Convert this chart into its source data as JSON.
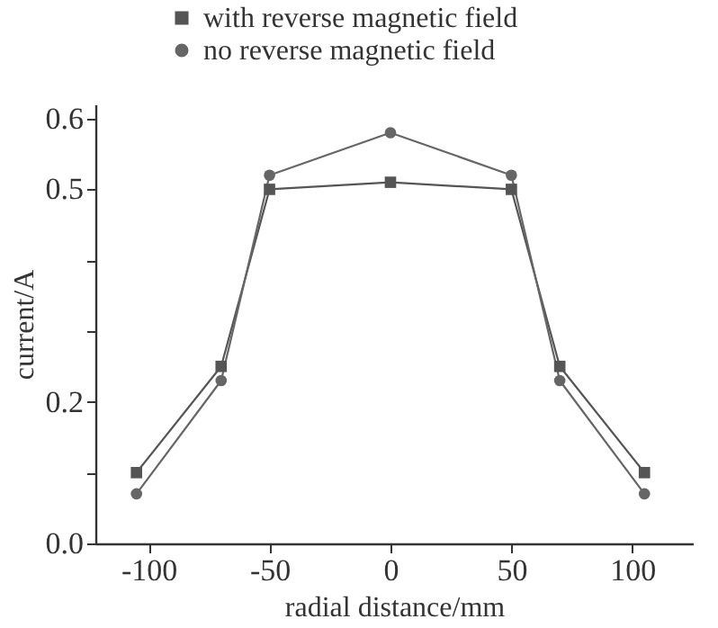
{
  "chart_data": {
    "type": "line",
    "xlabel": "radial distance/mm",
    "ylabel": "current/A",
    "x": [
      -105,
      -70,
      -50,
      0,
      50,
      70,
      105
    ],
    "series": [
      {
        "name": "with reverse magnetic field",
        "color": "#555555",
        "marker": "square",
        "values": [
          0.1,
          0.25,
          0.5,
          0.51,
          0.5,
          0.25,
          0.1
        ]
      },
      {
        "name": "no reverse magnetic field",
        "color": "#666666",
        "marker": "circle",
        "values": [
          0.07,
          0.23,
          0.52,
          0.58,
          0.52,
          0.23,
          0.07
        ]
      }
    ],
    "xlim": [
      -122,
      125
    ],
    "xticks": [
      -100,
      -50,
      0,
      50,
      100
    ],
    "ylim": [
      0,
      0.62
    ],
    "yticks": [
      {
        "value": 0,
        "label": "0.0"
      },
      {
        "value": 0.1,
        "label": null
      },
      {
        "value": 0.2,
        "label": "0.2"
      },
      {
        "value": 0.3,
        "label": null
      },
      {
        "value": 0.4,
        "label": null
      },
      {
        "value": 0.5,
        "label": "0.5"
      },
      {
        "value": 0.6,
        "label": "0.6"
      }
    ],
    "legend": "top left",
    "grid": false
  }
}
